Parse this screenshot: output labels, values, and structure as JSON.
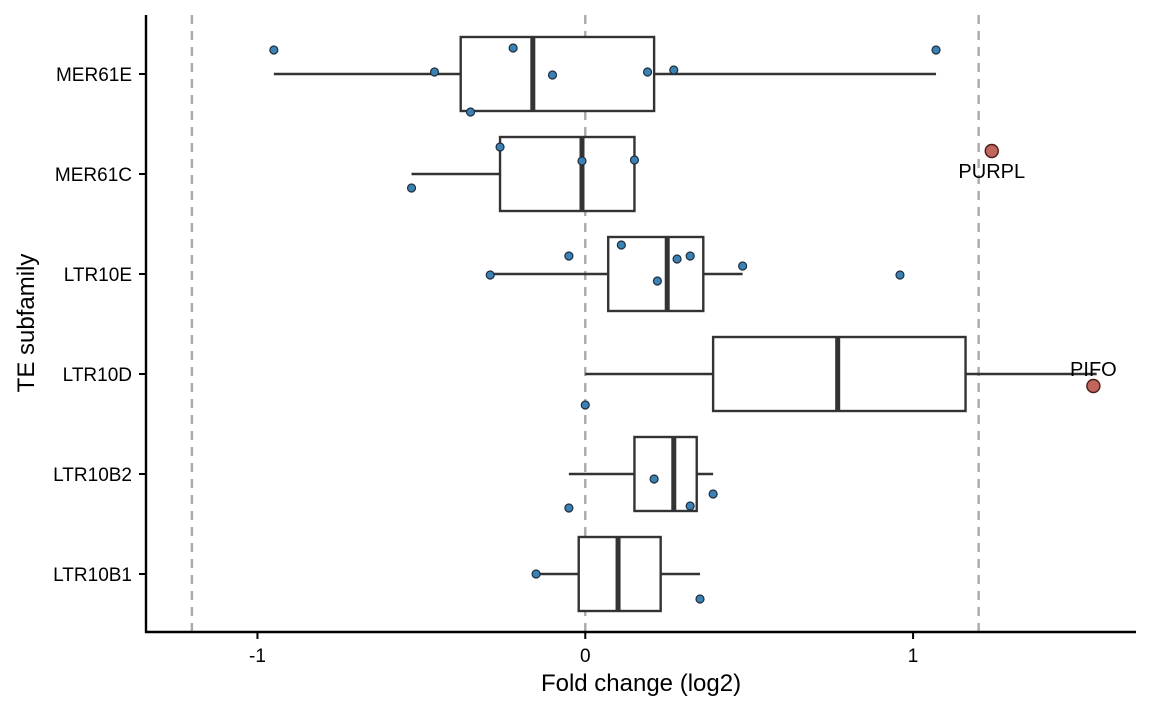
{
  "chart_data": {
    "type": "boxplot",
    "orientation": "horizontal",
    "xlabel": "Fold change (log2)",
    "ylabel": "TE subfamily",
    "xlim": [
      -1.34,
      1.68
    ],
    "x_ticks": [
      -1,
      0,
      1
    ],
    "x_tick_labels": [
      "-1",
      "0",
      "1"
    ],
    "reference_lines": [
      -1.2,
      0,
      1.2
    ],
    "grid": false,
    "legend": "none",
    "colors": {
      "box_stroke": "#333333",
      "point_fill": "#3a82b4",
      "point_stroke": "#1f2d3d",
      "highlight_fill": "#c0665c",
      "highlight_stroke": "#4a1c18",
      "reference_line": "#aaaaaa"
    },
    "categories": [
      "MER61E",
      "MER61C",
      "LTR10E",
      "LTR10D",
      "LTR10B2",
      "LTR10B1"
    ],
    "boxes": [
      {
        "category": "MER61E",
        "whisker_low": -0.95,
        "q1": -0.38,
        "median": -0.16,
        "q3": 0.21,
        "whisker_high": 1.07
      },
      {
        "category": "MER61C",
        "whisker_low": -0.53,
        "q1": -0.26,
        "median": -0.01,
        "q3": 0.15,
        "whisker_high": 0.15
      },
      {
        "category": "LTR10E",
        "whisker_low": -0.29,
        "q1": 0.07,
        "median": 0.25,
        "q3": 0.36,
        "whisker_high": 0.48
      },
      {
        "category": "LTR10D",
        "whisker_low": 0.0,
        "q1": 0.39,
        "median": 0.77,
        "q3": 1.16,
        "whisker_high": 1.56
      },
      {
        "category": "LTR10B2",
        "whisker_low": -0.05,
        "q1": 0.15,
        "median": 0.27,
        "q3": 0.34,
        "whisker_high": 0.39
      },
      {
        "category": "LTR10B1",
        "whisker_low": -0.15,
        "q1": -0.02,
        "median": 0.1,
        "q3": 0.23,
        "whisker_high": 0.35
      }
    ],
    "points": [
      {
        "category": "MER61E",
        "x": -0.95,
        "offset": 0.24
      },
      {
        "category": "MER61E",
        "x": -0.22,
        "offset": 0.26
      },
      {
        "category": "MER61E",
        "x": -0.46,
        "offset": 0.02
      },
      {
        "category": "MER61E",
        "x": -0.1,
        "offset": -0.01
      },
      {
        "category": "MER61E",
        "x": 0.19,
        "offset": 0.02
      },
      {
        "category": "MER61E",
        "x": 0.27,
        "offset": 0.04
      },
      {
        "category": "MER61E",
        "x": 1.07,
        "offset": 0.24
      },
      {
        "category": "MER61E",
        "x": -0.35,
        "offset": -0.38
      },
      {
        "category": "MER61C",
        "x": -0.26,
        "offset": 0.27
      },
      {
        "category": "MER61C",
        "x": -0.01,
        "offset": 0.13
      },
      {
        "category": "MER61C",
        "x": 0.15,
        "offset": 0.14
      },
      {
        "category": "MER61C",
        "x": -0.53,
        "offset": -0.14
      },
      {
        "category": "LTR10E",
        "x": 0.11,
        "offset": 0.29
      },
      {
        "category": "LTR10E",
        "x": -0.05,
        "offset": 0.18
      },
      {
        "category": "LTR10E",
        "x": 0.28,
        "offset": 0.15
      },
      {
        "category": "LTR10E",
        "x": 0.32,
        "offset": 0.18
      },
      {
        "category": "LTR10E",
        "x": 0.48,
        "offset": 0.08
      },
      {
        "category": "LTR10E",
        "x": -0.29,
        "offset": -0.01
      },
      {
        "category": "LTR10E",
        "x": 0.96,
        "offset": -0.01
      },
      {
        "category": "LTR10E",
        "x": 0.22,
        "offset": -0.07
      },
      {
        "category": "LTR10D",
        "x": 0.0,
        "offset": -0.31
      },
      {
        "category": "LTR10B2",
        "x": 0.21,
        "offset": -0.05
      },
      {
        "category": "LTR10B2",
        "x": 0.39,
        "offset": -0.2
      },
      {
        "category": "LTR10B2",
        "x": -0.05,
        "offset": -0.34
      },
      {
        "category": "LTR10B2",
        "x": 0.32,
        "offset": -0.32
      },
      {
        "category": "LTR10B1",
        "x": -0.15,
        "offset": 0.0
      },
      {
        "category": "LTR10B1",
        "x": 0.35,
        "offset": -0.25
      }
    ],
    "highlights": [
      {
        "category": "MER61C",
        "x": 1.24,
        "offset": 0.23,
        "label": "PURPL",
        "label_position": "below"
      },
      {
        "category": "LTR10D",
        "x": 1.55,
        "offset": -0.12,
        "label": "PIFO",
        "label_position": "above"
      }
    ]
  }
}
